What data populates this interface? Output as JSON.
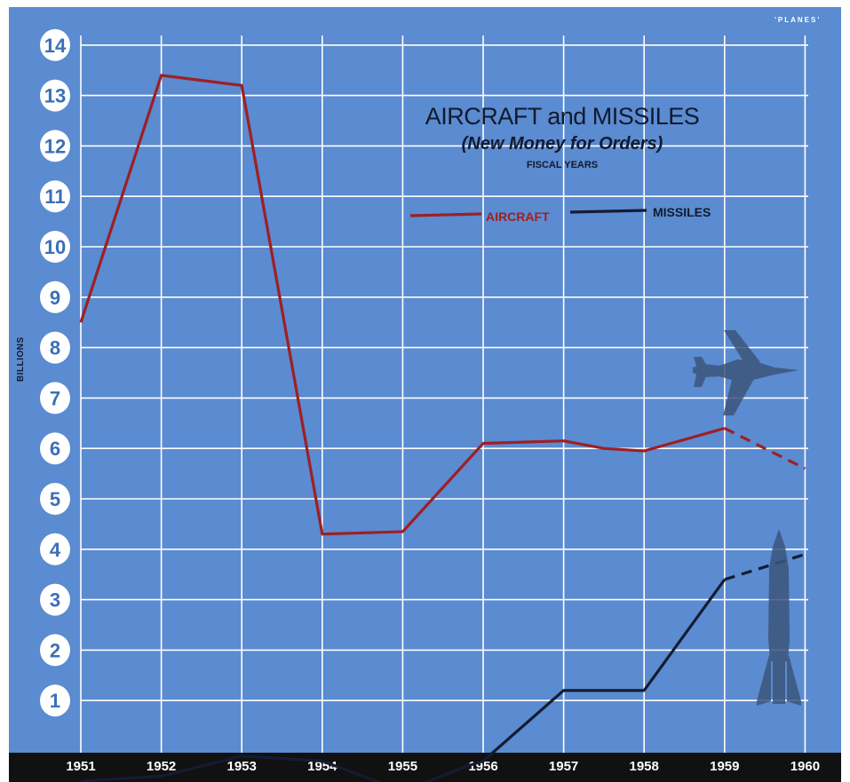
{
  "source_label": "'PLANES'",
  "chart_data": {
    "type": "line",
    "title": "AIRCRAFT and MISSILES",
    "subtitle": "(New Money for Orders)",
    "note": "FISCAL YEARS",
    "ylabel": "BILLIONS",
    "xlabel": "",
    "categories": [
      "1951",
      "1952",
      "1953",
      "1954",
      "1955",
      "1956",
      "1957",
      "1958",
      "1959",
      "1960"
    ],
    "yticks": [
      1,
      2,
      3,
      4,
      5,
      6,
      7,
      8,
      9,
      10,
      11,
      12,
      13,
      14
    ],
    "ylim": [
      0,
      14
    ],
    "grid": true,
    "legend_position": "top-right",
    "series": [
      {
        "name": "AIRCRAFT",
        "color": "#9e1f24",
        "points": [
          [
            "1951",
            8.5
          ],
          [
            "1952",
            13.4
          ],
          [
            "1953",
            13.2
          ],
          [
            "1954",
            4.3
          ],
          [
            "1955",
            4.35
          ],
          [
            "1956",
            6.1
          ],
          [
            "1957",
            6.15
          ],
          [
            "1957.5",
            6.0
          ],
          [
            "1958",
            5.95
          ],
          [
            "1959",
            6.4
          ]
        ],
        "projected": [
          [
            "1959",
            6.4
          ],
          [
            "1960",
            5.6
          ]
        ]
      },
      {
        "name": "MISSILES",
        "color": "#141c33",
        "points": [
          [
            "1951",
            -0.6
          ],
          [
            "1952",
            -0.5
          ],
          [
            "1953",
            -0.1
          ],
          [
            "1954",
            -0.2
          ],
          [
            "1955",
            -0.8
          ],
          [
            "1955.8",
            -0.3
          ],
          [
            "1956",
            -0.2
          ],
          [
            "1957",
            1.2
          ],
          [
            "1958",
            1.2
          ],
          [
            "1959",
            3.4
          ]
        ],
        "projected": [
          [
            "1959",
            3.4
          ],
          [
            "1960",
            3.9
          ]
        ]
      }
    ],
    "icons": [
      "jet-plane-icon",
      "rocket-icon"
    ]
  }
}
